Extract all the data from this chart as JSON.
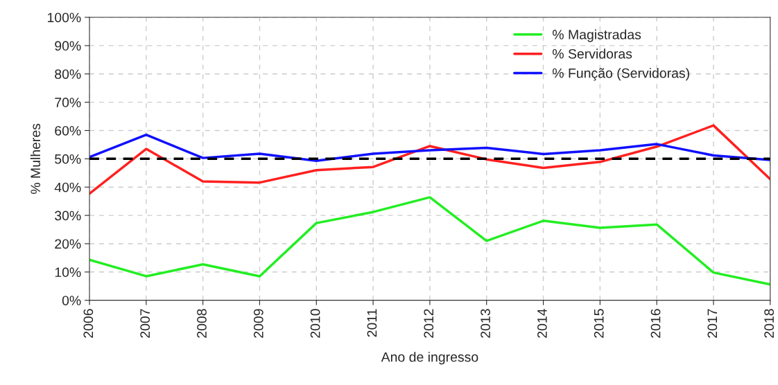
{
  "chart_data": {
    "type": "line",
    "xlabel": "Ano de ingresso",
    "ylabel": "% Mulheres",
    "categories": [
      "2006",
      "2007",
      "2008",
      "2009",
      "2010",
      "2011",
      "2012",
      "2013",
      "2014",
      "2015",
      "2016",
      "2017",
      "2018"
    ],
    "series": [
      {
        "name": "% Magistradas",
        "color": "#22ee22",
        "values": [
          14.3,
          8.5,
          12.7,
          8.5,
          27.3,
          31.2,
          36.4,
          21,
          28.1,
          25.6,
          26.8,
          9.8,
          5.6
        ]
      },
      {
        "name": "% Servidoras",
        "color": "#ff2020",
        "values": [
          37.7,
          53.5,
          42,
          41.6,
          46,
          47.1,
          54.5,
          49.8,
          46.8,
          48.9,
          54.3,
          61.8,
          42.8
        ]
      },
      {
        "name": "% Função (Servidoras)",
        "color": "#1010ff",
        "values": [
          50.6,
          58.5,
          50.3,
          51.8,
          49.3,
          51.8,
          53,
          53.9,
          51.7,
          53,
          55.2,
          51.2,
          49.6
        ]
      }
    ],
    "ylim": [
      0,
      100
    ],
    "yticks": [
      {
        "value": 0,
        "label": "0%"
      },
      {
        "value": 10,
        "label": "10%"
      },
      {
        "value": 20,
        "label": "20%"
      },
      {
        "value": 30,
        "label": "30%"
      },
      {
        "value": 40,
        "label": "40%"
      },
      {
        "value": 50,
        "label": "50%"
      },
      {
        "value": 60,
        "label": "60%"
      },
      {
        "value": 70,
        "label": "70%"
      },
      {
        "value": 80,
        "label": "80%"
      },
      {
        "value": 90,
        "label": "90%"
      },
      {
        "value": 100,
        "label": "100%"
      }
    ],
    "ref_lines": [
      {
        "axis": "y",
        "value": 50,
        "color": "#000000",
        "line_style": "dashed"
      }
    ],
    "grid": true,
    "legend": "top right",
    "line_style": "solid",
    "marker": "none"
  }
}
